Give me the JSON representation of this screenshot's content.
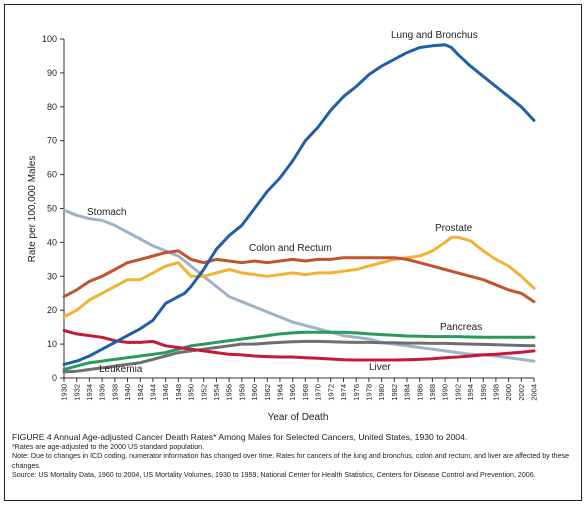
{
  "caption": {
    "title": "FIGURE 4  Annual Age-adjusted Cancer Death Rates* Among Males for Selected Cancers, United States, 1930 to 2004.",
    "footnote": "*Rates are age-adjusted to the 2000 US standard population.",
    "note": "Note: Due to changes in ICD coding, numerator information has changed over time. Rates for cancers of the lung and bronchus, colon and rectum, and liver are affected by these changes.",
    "source": "Source: US Mortality Data, 1960 to 2004, US Mortality Volumes, 1930 to 1959, National Center for Health Statistics, Centers for Disease Control and Prevention, 2006."
  },
  "chart_data": {
    "type": "line",
    "title": "",
    "xlabel": "Year of Death",
    "ylabel": "Rate per 100,000 Males",
    "xlim": [
      1930,
      2004
    ],
    "ylim": [
      0,
      100
    ],
    "yticks": [
      0,
      10,
      20,
      30,
      40,
      50,
      60,
      70,
      80,
      90,
      100
    ],
    "xticks": [
      "1930",
      "1932",
      "1934",
      "1936",
      "1938",
      "1940",
      "1942",
      "1944",
      "1946",
      "1948",
      "1950",
      "1952",
      "1954",
      "1956",
      "1958",
      "1960",
      "1962",
      "1964",
      "1966",
      "1968",
      "1970",
      "1972",
      "1974",
      "1976",
      "1978",
      "1980",
      "1982",
      "1984",
      "1986",
      "1988",
      "1990",
      "1992",
      "1994",
      "1996",
      "1998",
      "2000",
      "2002",
      "2004"
    ],
    "grid": false,
    "legend": "labels placed directly on lines",
    "series": [
      {
        "name": "Lung and Bronchus",
        "color": "#1f5fa8",
        "x": [
          1930,
          1932,
          1934,
          1936,
          1938,
          1940,
          1942,
          1944,
          1946,
          1948,
          1949,
          1950,
          1952,
          1954,
          1956,
          1958,
          1960,
          1962,
          1964,
          1966,
          1968,
          1970,
          1972,
          1974,
          1976,
          1978,
          1980,
          1982,
          1984,
          1986,
          1988,
          1990,
          1991,
          1992,
          1994,
          1996,
          1998,
          2000,
          2002,
          2004
        ],
        "y": [
          4,
          5,
          6.5,
          8.5,
          10.5,
          12.5,
          14.5,
          17,
          22,
          24,
          25,
          27,
          32,
          38,
          42,
          45,
          50,
          55,
          59,
          64,
          70,
          74,
          79,
          83,
          86,
          89.5,
          92,
          94,
          96,
          97.5,
          98,
          98.3,
          97.5,
          95.5,
          92,
          89,
          86,
          83,
          80,
          76
        ]
      },
      {
        "name": "Stomach",
        "color": "#9fb3c8",
        "x": [
          1930,
          1932,
          1934,
          1936,
          1938,
          1940,
          1942,
          1944,
          1946,
          1948,
          1950,
          1952,
          1954,
          1956,
          1958,
          1960,
          1962,
          1964,
          1966,
          1968,
          1970,
          1972,
          1974,
          1976,
          1978,
          1980,
          1982,
          1984,
          1986,
          1988,
          1990,
          1992,
          1994,
          1996,
          1998,
          2000,
          2002,
          2004
        ],
        "y": [
          49.5,
          48,
          47,
          46.5,
          45,
          43,
          41,
          39,
          37.5,
          36,
          33,
          30,
          27,
          24,
          22.5,
          21,
          19.5,
          18,
          16.5,
          15.5,
          14.5,
          13.5,
          12.5,
          12,
          11.5,
          10.5,
          10,
          9.5,
          9,
          8.5,
          8,
          7.5,
          7,
          6.8,
          6.5,
          6,
          5.5,
          5
        ]
      },
      {
        "name": "Colon and Rectum",
        "color": "#c0542a",
        "x": [
          1930,
          1932,
          1934,
          1936,
          1938,
          1940,
          1942,
          1944,
          1946,
          1948,
          1950,
          1952,
          1954,
          1956,
          1958,
          1960,
          1962,
          1964,
          1966,
          1968,
          1970,
          1972,
          1974,
          1976,
          1978,
          1980,
          1982,
          1984,
          1986,
          1988,
          1990,
          1992,
          1994,
          1996,
          1998,
          2000,
          2002,
          2004
        ],
        "y": [
          24,
          26,
          28.5,
          30,
          32,
          34,
          35,
          36,
          37,
          37.5,
          35,
          34,
          35,
          34.5,
          34,
          34.5,
          34,
          34.5,
          35,
          34.5,
          35,
          35,
          35.5,
          35.5,
          35.5,
          35.5,
          35.5,
          35,
          34,
          33,
          32,
          31,
          30,
          29,
          27.5,
          26,
          25,
          22.5
        ]
      },
      {
        "name": "Prostate",
        "color": "#f2b233",
        "x": [
          1930,
          1932,
          1934,
          1936,
          1938,
          1940,
          1942,
          1944,
          1946,
          1948,
          1950,
          1952,
          1954,
          1956,
          1958,
          1960,
          1962,
          1964,
          1966,
          1968,
          1970,
          1972,
          1974,
          1976,
          1978,
          1980,
          1982,
          1984,
          1986,
          1988,
          1990,
          1991,
          1992,
          1994,
          1996,
          1998,
          2000,
          2002,
          2004
        ],
        "y": [
          18,
          20,
          23,
          25,
          27,
          29,
          29,
          31,
          33,
          34,
          30,
          30,
          31,
          32,
          31,
          30.5,
          30,
          30.5,
          31,
          30.5,
          31,
          31,
          31.5,
          32,
          33,
          34,
          35,
          35.5,
          36,
          37.5,
          40,
          41.5,
          41.5,
          40.5,
          37.5,
          35,
          33,
          30,
          26.5
        ]
      },
      {
        "name": "Pancreas",
        "color": "#2a9a5c",
        "x": [
          1930,
          1932,
          1934,
          1936,
          1938,
          1940,
          1942,
          1944,
          1946,
          1948,
          1950,
          1952,
          1954,
          1956,
          1958,
          1960,
          1962,
          1964,
          1966,
          1968,
          1970,
          1972,
          1974,
          1976,
          1978,
          1980,
          1982,
          1984,
          1986,
          1988,
          1990,
          1992,
          1994,
          1996,
          1998,
          2000,
          2002,
          2004
        ],
        "y": [
          2.5,
          3.5,
          4.5,
          5,
          5.5,
          6,
          6.5,
          7,
          7.5,
          8.5,
          9.5,
          10,
          10.5,
          11,
          11.5,
          12,
          12.5,
          13,
          13.3,
          13.5,
          13.5,
          13.5,
          13.5,
          13.3,
          13,
          12.8,
          12.6,
          12.4,
          12.3,
          12.2,
          12.2,
          12.2,
          12.1,
          12,
          12,
          12,
          12,
          12
        ]
      },
      {
        "name": "Leukemia",
        "color": "#6f6f6f",
        "x": [
          1930,
          1932,
          1934,
          1936,
          1938,
          1940,
          1942,
          1944,
          1946,
          1948,
          1950,
          1952,
          1954,
          1956,
          1958,
          1960,
          1962,
          1964,
          1966,
          1968,
          1970,
          1972,
          1974,
          1976,
          1978,
          1980,
          1982,
          1984,
          1986,
          1988,
          1990,
          1992,
          1994,
          1996,
          1998,
          2000,
          2002,
          2004
        ],
        "y": [
          1.8,
          2,
          2.5,
          3,
          3.5,
          4,
          4.5,
          5.5,
          6.5,
          7.5,
          8,
          8.5,
          9,
          9.5,
          10,
          10,
          10.3,
          10.5,
          10.7,
          10.8,
          10.8,
          10.7,
          10.6,
          10.5,
          10.5,
          10.4,
          10.4,
          10.3,
          10.3,
          10.2,
          10.2,
          10.1,
          10,
          9.9,
          9.8,
          9.7,
          9.6,
          9.5
        ]
      },
      {
        "name": "Liver",
        "color": "#c4193a",
        "x": [
          1930,
          1932,
          1934,
          1936,
          1938,
          1940,
          1942,
          1944,
          1946,
          1948,
          1950,
          1952,
          1954,
          1956,
          1958,
          1960,
          1962,
          1964,
          1966,
          1968,
          1970,
          1972,
          1974,
          1976,
          1978,
          1980,
          1982,
          1984,
          1986,
          1988,
          1990,
          1992,
          1994,
          1996,
          1998,
          2000,
          2002,
          2004
        ],
        "y": [
          14,
          13,
          12.5,
          12,
          11,
          10.5,
          10.5,
          10.8,
          9.5,
          9,
          8.5,
          8,
          7.5,
          7,
          6.8,
          6.5,
          6.3,
          6.2,
          6.2,
          6,
          5.8,
          5.6,
          5.4,
          5.3,
          5.3,
          5.3,
          5.3,
          5.4,
          5.5,
          5.7,
          6,
          6.2,
          6.5,
          6.8,
          7,
          7.3,
          7.6,
          8
        ]
      }
    ],
    "annotations": [
      {
        "text": "Lung and Bronchus",
        "series": "Lung and Bronchus"
      },
      {
        "text": "Stomach",
        "series": "Stomach"
      },
      {
        "text": "Colon and Rectum",
        "series": "Colon and Rectum"
      },
      {
        "text": "Prostate",
        "series": "Prostate"
      },
      {
        "text": "Pancreas",
        "series": "Pancreas"
      },
      {
        "text": "Leukemia",
        "series": "Leukemia"
      },
      {
        "text": "Liver",
        "series": "Liver"
      }
    ]
  }
}
